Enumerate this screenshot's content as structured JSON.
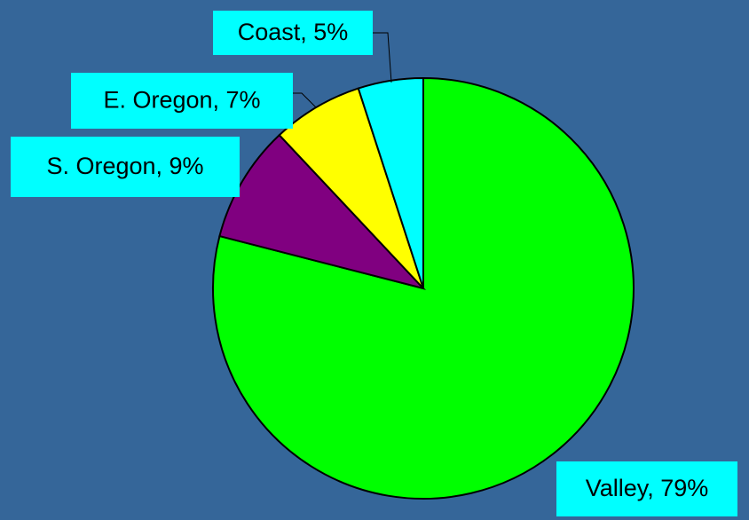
{
  "chart_data": {
    "type": "pie",
    "values": [
      79,
      9,
      7,
      5
    ],
    "value_labels": [
      "Valley, 79%",
      "S. Oregon, 9%",
      "E. Oregon, 7%",
      "Coast, 5%"
    ],
    "colors": [
      "#00ff00",
      "#800080",
      "#ffff00",
      "#00ffff"
    ],
    "label_color": "#00ffff"
  }
}
